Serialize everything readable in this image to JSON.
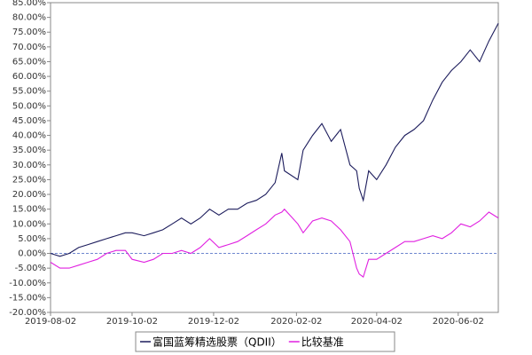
{
  "chart_data": {
    "type": "line",
    "x": [
      "2019-08-02",
      "2019-08-09",
      "2019-08-16",
      "2019-08-23",
      "2019-08-30",
      "2019-09-06",
      "2019-09-13",
      "2019-09-20",
      "2019-09-27",
      "2019-10-02",
      "2019-10-11",
      "2019-10-18",
      "2019-10-25",
      "2019-11-01",
      "2019-11-08",
      "2019-11-15",
      "2019-11-22",
      "2019-11-29",
      "2019-12-06",
      "2019-12-13",
      "2019-12-20",
      "2019-12-27",
      "2020-01-03",
      "2020-01-10",
      "2020-01-17",
      "2020-01-22",
      "2020-01-24",
      "2020-02-03",
      "2020-02-07",
      "2020-02-14",
      "2020-02-21",
      "2020-02-28",
      "2020-03-06",
      "2020-03-13",
      "2020-03-18",
      "2020-03-20",
      "2020-03-23",
      "2020-03-27",
      "2020-04-02",
      "2020-04-09",
      "2020-04-16",
      "2020-04-23",
      "2020-04-30",
      "2020-05-07",
      "2020-05-14",
      "2020-05-21",
      "2020-05-28",
      "2020-06-04",
      "2020-06-11",
      "2020-06-18",
      "2020-06-25",
      "2020-07-02"
    ],
    "series": [
      {
        "name": "富国蓝筹精选股票（QDII）",
        "color": "#1c1c5c",
        "values": [
          0,
          -1,
          0,
          2,
          3,
          4,
          5,
          6,
          7,
          7,
          6,
          7,
          8,
          10,
          12,
          10,
          12,
          15,
          13,
          15,
          15,
          17,
          18,
          20,
          24,
          34,
          28,
          25,
          35,
          40,
          44,
          38,
          42,
          30,
          28,
          22,
          18,
          28,
          25,
          30,
          36,
          40,
          42,
          45,
          52,
          58,
          62,
          65,
          69,
          65,
          72,
          78
        ]
      },
      {
        "name": "比较基准",
        "color": "#e020e0",
        "values": [
          -3,
          -5,
          -5,
          -4,
          -3,
          -2,
          0,
          1,
          1,
          -2,
          -3,
          -2,
          0,
          0,
          1,
          0,
          2,
          5,
          2,
          3,
          4,
          6,
          8,
          10,
          13,
          14,
          15,
          10,
          7,
          11,
          12,
          11,
          8,
          4,
          -5,
          -7,
          -8,
          -2,
          -2,
          0,
          2,
          4,
          4,
          5,
          6,
          5,
          7,
          10,
          9,
          11,
          14,
          12
        ]
      }
    ],
    "xlim": [
      "2019-08-02",
      "2020-07-02"
    ],
    "xticks": [
      "2019-08-02",
      "2019-10-02",
      "2019-12-02",
      "2020-02-02",
      "2020-04-02",
      "2020-06-02"
    ],
    "ylim": [
      -20,
      85
    ],
    "yticks": [
      {
        "value": -20,
        "label": "-20.00%"
      },
      {
        "value": -15,
        "label": "-15.00%"
      },
      {
        "value": -10,
        "label": "-10.00%"
      },
      {
        "value": -5,
        "label": "-5.00%"
      },
      {
        "value": 0,
        "label": "0.00%"
      },
      {
        "value": 5,
        "label": "5.00%"
      },
      {
        "value": 10,
        "label": "10.00%"
      },
      {
        "value": 15,
        "label": "15.00%"
      },
      {
        "value": 20,
        "label": "20.00%"
      },
      {
        "value": 25,
        "label": "25.00%"
      },
      {
        "value": 30,
        "label": "30.00%"
      },
      {
        "value": 35,
        "label": "35.00%"
      },
      {
        "value": 40,
        "label": "40.00%"
      },
      {
        "value": 45,
        "label": "45.00%"
      },
      {
        "value": 50,
        "label": "50.00%"
      },
      {
        "value": 55,
        "label": "55.00%"
      },
      {
        "value": 60,
        "label": "60.00%"
      },
      {
        "value": 65,
        "label": "65.00%"
      },
      {
        "value": 70,
        "label": "70.00%"
      },
      {
        "value": 75,
        "label": "75.00%"
      },
      {
        "value": 80,
        "label": "80.00%"
      },
      {
        "value": 85,
        "label": "85.00%"
      }
    ],
    "grid": false,
    "legend": "bottom"
  }
}
